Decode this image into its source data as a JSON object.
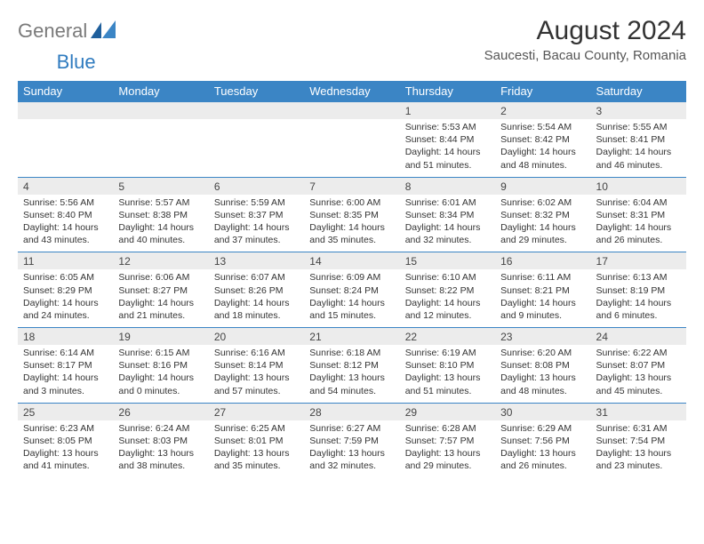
{
  "logo": {
    "text1": "General",
    "text2": "Blue"
  },
  "title": "August 2024",
  "location": "Saucesti, Bacau County, Romania",
  "colors": {
    "header_bg": "#3b85c5",
    "header_text": "#ffffff",
    "daynum_bg": "#ececec",
    "daynum_border": "#3b85c5",
    "body_text": "#333333",
    "logo_gray": "#7a7a7a",
    "logo_blue": "#2f7bbf",
    "page_bg": "#ffffff"
  },
  "weekdays": [
    "Sunday",
    "Monday",
    "Tuesday",
    "Wednesday",
    "Thursday",
    "Friday",
    "Saturday"
  ],
  "weeks": [
    {
      "nums": [
        "",
        "",
        "",
        "",
        "1",
        "2",
        "3"
      ],
      "cells": [
        null,
        null,
        null,
        null,
        {
          "sunrise": "Sunrise: 5:53 AM",
          "sunset": "Sunset: 8:44 PM",
          "daylight": "Daylight: 14 hours and 51 minutes."
        },
        {
          "sunrise": "Sunrise: 5:54 AM",
          "sunset": "Sunset: 8:42 PM",
          "daylight": "Daylight: 14 hours and 48 minutes."
        },
        {
          "sunrise": "Sunrise: 5:55 AM",
          "sunset": "Sunset: 8:41 PM",
          "daylight": "Daylight: 14 hours and 46 minutes."
        }
      ]
    },
    {
      "nums": [
        "4",
        "5",
        "6",
        "7",
        "8",
        "9",
        "10"
      ],
      "cells": [
        {
          "sunrise": "Sunrise: 5:56 AM",
          "sunset": "Sunset: 8:40 PM",
          "daylight": "Daylight: 14 hours and 43 minutes."
        },
        {
          "sunrise": "Sunrise: 5:57 AM",
          "sunset": "Sunset: 8:38 PM",
          "daylight": "Daylight: 14 hours and 40 minutes."
        },
        {
          "sunrise": "Sunrise: 5:59 AM",
          "sunset": "Sunset: 8:37 PM",
          "daylight": "Daylight: 14 hours and 37 minutes."
        },
        {
          "sunrise": "Sunrise: 6:00 AM",
          "sunset": "Sunset: 8:35 PM",
          "daylight": "Daylight: 14 hours and 35 minutes."
        },
        {
          "sunrise": "Sunrise: 6:01 AM",
          "sunset": "Sunset: 8:34 PM",
          "daylight": "Daylight: 14 hours and 32 minutes."
        },
        {
          "sunrise": "Sunrise: 6:02 AM",
          "sunset": "Sunset: 8:32 PM",
          "daylight": "Daylight: 14 hours and 29 minutes."
        },
        {
          "sunrise": "Sunrise: 6:04 AM",
          "sunset": "Sunset: 8:31 PM",
          "daylight": "Daylight: 14 hours and 26 minutes."
        }
      ]
    },
    {
      "nums": [
        "11",
        "12",
        "13",
        "14",
        "15",
        "16",
        "17"
      ],
      "cells": [
        {
          "sunrise": "Sunrise: 6:05 AM",
          "sunset": "Sunset: 8:29 PM",
          "daylight": "Daylight: 14 hours and 24 minutes."
        },
        {
          "sunrise": "Sunrise: 6:06 AM",
          "sunset": "Sunset: 8:27 PM",
          "daylight": "Daylight: 14 hours and 21 minutes."
        },
        {
          "sunrise": "Sunrise: 6:07 AM",
          "sunset": "Sunset: 8:26 PM",
          "daylight": "Daylight: 14 hours and 18 minutes."
        },
        {
          "sunrise": "Sunrise: 6:09 AM",
          "sunset": "Sunset: 8:24 PM",
          "daylight": "Daylight: 14 hours and 15 minutes."
        },
        {
          "sunrise": "Sunrise: 6:10 AM",
          "sunset": "Sunset: 8:22 PM",
          "daylight": "Daylight: 14 hours and 12 minutes."
        },
        {
          "sunrise": "Sunrise: 6:11 AM",
          "sunset": "Sunset: 8:21 PM",
          "daylight": "Daylight: 14 hours and 9 minutes."
        },
        {
          "sunrise": "Sunrise: 6:13 AM",
          "sunset": "Sunset: 8:19 PM",
          "daylight": "Daylight: 14 hours and 6 minutes."
        }
      ]
    },
    {
      "nums": [
        "18",
        "19",
        "20",
        "21",
        "22",
        "23",
        "24"
      ],
      "cells": [
        {
          "sunrise": "Sunrise: 6:14 AM",
          "sunset": "Sunset: 8:17 PM",
          "daylight": "Daylight: 14 hours and 3 minutes."
        },
        {
          "sunrise": "Sunrise: 6:15 AM",
          "sunset": "Sunset: 8:16 PM",
          "daylight": "Daylight: 14 hours and 0 minutes."
        },
        {
          "sunrise": "Sunrise: 6:16 AM",
          "sunset": "Sunset: 8:14 PM",
          "daylight": "Daylight: 13 hours and 57 minutes."
        },
        {
          "sunrise": "Sunrise: 6:18 AM",
          "sunset": "Sunset: 8:12 PM",
          "daylight": "Daylight: 13 hours and 54 minutes."
        },
        {
          "sunrise": "Sunrise: 6:19 AM",
          "sunset": "Sunset: 8:10 PM",
          "daylight": "Daylight: 13 hours and 51 minutes."
        },
        {
          "sunrise": "Sunrise: 6:20 AM",
          "sunset": "Sunset: 8:08 PM",
          "daylight": "Daylight: 13 hours and 48 minutes."
        },
        {
          "sunrise": "Sunrise: 6:22 AM",
          "sunset": "Sunset: 8:07 PM",
          "daylight": "Daylight: 13 hours and 45 minutes."
        }
      ]
    },
    {
      "nums": [
        "25",
        "26",
        "27",
        "28",
        "29",
        "30",
        "31"
      ],
      "cells": [
        {
          "sunrise": "Sunrise: 6:23 AM",
          "sunset": "Sunset: 8:05 PM",
          "daylight": "Daylight: 13 hours and 41 minutes."
        },
        {
          "sunrise": "Sunrise: 6:24 AM",
          "sunset": "Sunset: 8:03 PM",
          "daylight": "Daylight: 13 hours and 38 minutes."
        },
        {
          "sunrise": "Sunrise: 6:25 AM",
          "sunset": "Sunset: 8:01 PM",
          "daylight": "Daylight: 13 hours and 35 minutes."
        },
        {
          "sunrise": "Sunrise: 6:27 AM",
          "sunset": "Sunset: 7:59 PM",
          "daylight": "Daylight: 13 hours and 32 minutes."
        },
        {
          "sunrise": "Sunrise: 6:28 AM",
          "sunset": "Sunset: 7:57 PM",
          "daylight": "Daylight: 13 hours and 29 minutes."
        },
        {
          "sunrise": "Sunrise: 6:29 AM",
          "sunset": "Sunset: 7:56 PM",
          "daylight": "Daylight: 13 hours and 26 minutes."
        },
        {
          "sunrise": "Sunrise: 6:31 AM",
          "sunset": "Sunset: 7:54 PM",
          "daylight": "Daylight: 13 hours and 23 minutes."
        }
      ]
    }
  ]
}
